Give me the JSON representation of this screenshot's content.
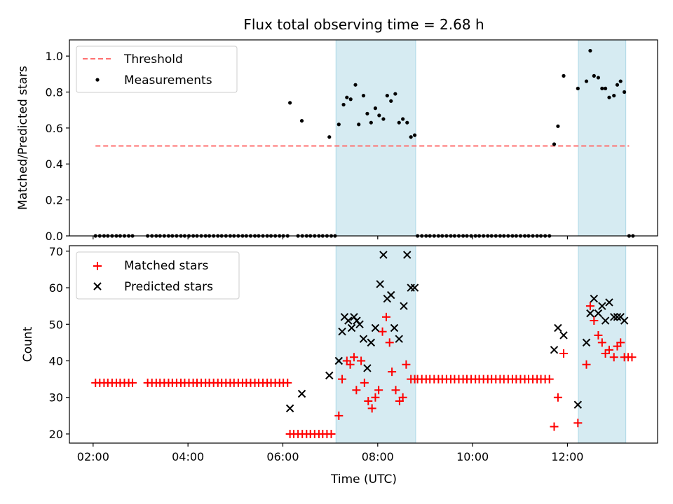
{
  "title": "Flux total observing time = 2.68 h",
  "colors": {
    "threshold": "#ff7070",
    "measurement": "#000000",
    "matched": "#ff0000",
    "predicted": "#000000",
    "shade": "#add8e6"
  },
  "chart_data": [
    {
      "type": "scatter",
      "ylabel": "Matched/Predicted stars",
      "xlim": [
        1.5,
        13.9
      ],
      "ylim": [
        0,
        1.09
      ],
      "yticks": [
        0.0,
        0.2,
        0.4,
        0.6,
        0.8,
        1.0
      ],
      "ytick_labels": [
        "0.0",
        "0.2",
        "0.4",
        "0.6",
        "0.8",
        "1.0"
      ],
      "legend": {
        "position": "upper-left",
        "entries": [
          "Threshold",
          "Measurements"
        ]
      },
      "shaded_intervals": [
        [
          7.12,
          8.8
        ],
        [
          12.23,
          13.23
        ]
      ],
      "threshold": {
        "name": "Threshold",
        "value": 0.5,
        "x": [
          2.05,
          13.3
        ]
      },
      "series": [
        {
          "name": "Measurements",
          "x": [
            6.15,
            6.4,
            6.98,
            7.18,
            7.28,
            7.35,
            7.43,
            7.53,
            7.6,
            7.7,
            7.78,
            7.86,
            7.95,
            8.03,
            8.12,
            8.2,
            8.28,
            8.37,
            8.45,
            8.53,
            8.62,
            8.7,
            8.78,
            11.72,
            11.8,
            11.92,
            12.22,
            12.4,
            12.48,
            12.56,
            12.65,
            12.73,
            12.8,
            12.88,
            12.98,
            13.05,
            13.12,
            13.2
          ],
          "y": [
            0.74,
            0.64,
            0.55,
            0.62,
            0.73,
            0.77,
            0.76,
            0.84,
            0.62,
            0.78,
            0.68,
            0.63,
            0.71,
            0.67,
            0.65,
            0.78,
            0.75,
            0.79,
            0.63,
            0.65,
            0.63,
            0.55,
            0.56,
            0.51,
            0.61,
            0.89,
            0.82,
            0.86,
            1.03,
            0.89,
            0.88,
            0.82,
            0.82,
            0.77,
            0.78,
            0.84,
            0.86,
            0.8
          ]
        },
        {
          "name": "Measurements",
          "x": [
            2.05,
            2.14,
            2.23,
            2.31,
            2.4,
            2.49,
            2.57,
            2.66,
            2.75,
            2.83,
            3.15,
            3.24,
            3.33,
            3.41,
            3.5,
            3.59,
            3.67,
            3.76,
            3.85,
            3.93,
            4.02,
            4.11,
            4.19,
            4.28,
            4.37,
            4.45,
            4.54,
            4.63,
            4.71,
            4.8,
            4.89,
            4.97,
            5.06,
            5.15,
            5.23,
            5.32,
            5.41,
            5.49,
            5.58,
            5.67,
            5.75,
            5.84,
            5.93,
            6.01,
            6.1,
            6.32,
            6.41,
            6.5,
            6.58,
            6.67,
            6.76,
            6.84,
            6.93,
            7.02,
            7.1,
            8.84,
            8.93,
            9.02,
            9.1,
            9.19,
            9.28,
            9.36,
            9.45,
            9.54,
            9.62,
            9.71,
            9.8,
            9.88,
            9.97,
            10.06,
            10.14,
            10.23,
            10.32,
            10.4,
            10.49,
            10.58,
            10.66,
            10.75,
            10.84,
            10.92,
            11.01,
            11.1,
            11.18,
            11.27,
            11.36,
            11.44,
            11.53,
            11.62,
            13.3,
            13.38
          ],
          "y": [
            0,
            0,
            0,
            0,
            0,
            0,
            0,
            0,
            0,
            0,
            0,
            0,
            0,
            0,
            0,
            0,
            0,
            0,
            0,
            0,
            0,
            0,
            0,
            0,
            0,
            0,
            0,
            0,
            0,
            0,
            0,
            0,
            0,
            0,
            0,
            0,
            0,
            0,
            0,
            0,
            0,
            0,
            0,
            0,
            0,
            0,
            0,
            0,
            0,
            0,
            0,
            0,
            0,
            0,
            0,
            0,
            0,
            0,
            0,
            0,
            0,
            0,
            0,
            0,
            0,
            0,
            0,
            0,
            0,
            0,
            0,
            0,
            0,
            0,
            0,
            0,
            0,
            0,
            0,
            0,
            0,
            0,
            0,
            0,
            0,
            0,
            0,
            0,
            0,
            0
          ]
        }
      ]
    },
    {
      "type": "scatter",
      "xlabel": "Time (UTC)",
      "ylabel": "Count",
      "xlim": [
        1.5,
        13.9
      ],
      "ylim": [
        17.5,
        71.5
      ],
      "xticks": [
        2,
        4,
        6,
        8,
        10,
        12
      ],
      "xtick_labels": [
        "02:00",
        "04:00",
        "06:00",
        "08:00",
        "10:00",
        "12:00"
      ],
      "yticks": [
        20,
        30,
        40,
        50,
        60,
        70
      ],
      "ytick_labels": [
        "20",
        "30",
        "40",
        "50",
        "60",
        "70"
      ],
      "legend": {
        "position": "upper-left",
        "entries": [
          "Matched stars",
          "Predicted stars"
        ]
      },
      "shaded_intervals": [
        [
          7.12,
          8.8
        ],
        [
          12.23,
          13.23
        ]
      ],
      "series": [
        {
          "name": "Matched stars",
          "x": [
            2.05,
            2.14,
            2.23,
            2.31,
            2.4,
            2.49,
            2.57,
            2.66,
            2.75,
            2.83,
            3.15,
            3.24,
            3.33,
            3.41,
            3.5,
            3.59,
            3.67,
            3.76,
            3.85,
            3.93,
            4.02,
            4.11,
            4.19,
            4.28,
            4.37,
            4.45,
            4.54,
            4.63,
            4.71,
            4.8,
            4.89,
            4.97,
            5.06,
            5.15,
            5.23,
            5.32,
            5.41,
            5.49,
            5.58,
            5.67,
            5.75,
            5.84,
            5.93,
            6.01,
            6.1,
            6.15,
            6.23,
            6.32,
            6.41,
            6.5,
            6.58,
            6.67,
            6.76,
            6.84,
            6.93,
            7.02,
            7.18,
            7.25,
            7.35,
            7.42,
            7.5,
            7.55,
            7.65,
            7.72,
            7.8,
            7.88,
            7.95,
            8.02,
            8.1,
            8.18,
            8.25,
            8.3,
            8.38,
            8.46,
            8.53,
            8.6,
            8.7,
            8.78,
            8.84,
            8.93,
            9.02,
            9.1,
            9.19,
            9.28,
            9.36,
            9.45,
            9.54,
            9.62,
            9.71,
            9.8,
            9.88,
            9.97,
            10.06,
            10.14,
            10.23,
            10.32,
            10.4,
            10.49,
            10.58,
            10.66,
            10.75,
            10.84,
            10.92,
            11.01,
            11.1,
            11.18,
            11.27,
            11.36,
            11.44,
            11.53,
            11.62,
            11.72,
            11.8,
            11.92,
            12.22,
            12.4,
            12.48,
            12.56,
            12.65,
            12.73,
            12.8,
            12.88,
            12.98,
            13.05,
            13.12,
            13.2,
            13.28,
            13.36
          ],
          "y": [
            34,
            34,
            34,
            34,
            34,
            34,
            34,
            34,
            34,
            34,
            34,
            34,
            34,
            34,
            34,
            34,
            34,
            34,
            34,
            34,
            34,
            34,
            34,
            34,
            34,
            34,
            34,
            34,
            34,
            34,
            34,
            34,
            34,
            34,
            34,
            34,
            34,
            34,
            34,
            34,
            34,
            34,
            34,
            34,
            34,
            20,
            20,
            20,
            20,
            20,
            20,
            20,
            20,
            20,
            20,
            20,
            25,
            35,
            40,
            39,
            41,
            32,
            40,
            34,
            29,
            27,
            30,
            32,
            48,
            52,
            45,
            37,
            32,
            29,
            30,
            39,
            35,
            35,
            35,
            35,
            35,
            35,
            35,
            35,
            35,
            35,
            35,
            35,
            35,
            35,
            35,
            35,
            35,
            35,
            35,
            35,
            35,
            35,
            35,
            35,
            35,
            35,
            35,
            35,
            35,
            35,
            35,
            35,
            35,
            35,
            35,
            22,
            30,
            42,
            23,
            39,
            55,
            51,
            47,
            45,
            42,
            43,
            41,
            44,
            45,
            41,
            41,
            41
          ]
        },
        {
          "name": "Predicted stars",
          "x": [
            6.15,
            6.4,
            6.98,
            7.18,
            7.25,
            7.3,
            7.38,
            7.45,
            7.5,
            7.56,
            7.62,
            7.7,
            7.78,
            7.86,
            7.95,
            8.05,
            8.12,
            8.2,
            8.28,
            8.35,
            8.45,
            8.55,
            8.62,
            8.7,
            8.78,
            11.72,
            11.8,
            11.92,
            12.22,
            12.4,
            12.48,
            12.56,
            12.65,
            12.73,
            12.8,
            12.88,
            12.98,
            13.05,
            13.12,
            13.2
          ],
          "y": [
            27,
            31,
            36,
            40,
            48,
            52,
            51,
            49,
            52,
            51,
            50,
            46,
            38,
            45,
            49,
            61,
            69,
            57,
            58,
            49,
            46,
            55,
            69,
            60,
            60,
            43,
            49,
            47,
            28,
            45,
            53,
            57,
            53,
            55,
            51,
            56,
            52,
            52,
            52,
            51
          ]
        }
      ]
    }
  ]
}
